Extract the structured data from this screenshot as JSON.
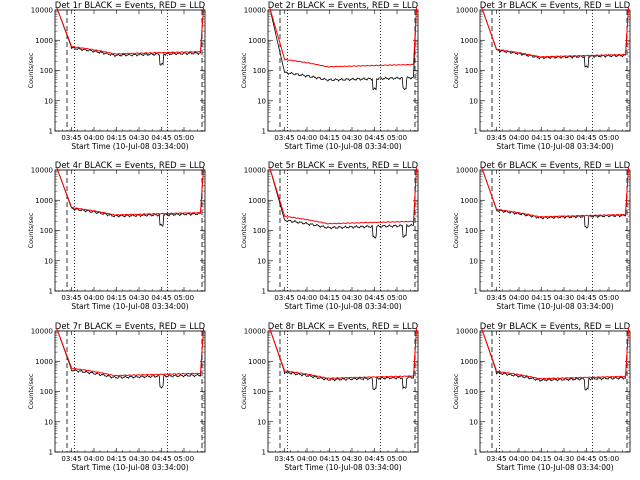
{
  "colors": {
    "events": "#000000",
    "lld": "#ff0000",
    "background": "#ffffff"
  },
  "shared": {
    "xlabel": "Start Time (10-Jul-08 03:34:00)",
    "ylabel": "Counts/sec",
    "xticks": [
      "03:45",
      "04:00",
      "04:15",
      "04:30",
      "04:45",
      "05:00"
    ],
    "yticks": [
      "1",
      "10",
      "100",
      "1000",
      "10000"
    ]
  },
  "chart_data": [
    {
      "type": "line",
      "title": "Det 1r BLACK = Events, RED = LLD",
      "yscale": "log",
      "ylim": [
        1,
        10000
      ],
      "xlim": [
        "03:34",
        "05:14"
      ],
      "markers": [
        "03:42",
        "03:47",
        "04:49",
        "05:12"
      ],
      "series": [
        {
          "name": "Events",
          "color": "#000000",
          "level": 360,
          "dips": [
            "04:45"
          ]
        },
        {
          "name": "LLD",
          "color": "#ff0000",
          "level": 400
        }
      ]
    },
    {
      "type": "line",
      "title": "Det 2r BLACK = Events, RED = LLD",
      "yscale": "log",
      "ylim": [
        1,
        10000
      ],
      "xlim": [
        "03:34",
        "05:14"
      ],
      "markers": [
        "03:42",
        "03:47",
        "04:49",
        "05:12"
      ],
      "series": [
        {
          "name": "Events",
          "color": "#000000",
          "level": 55,
          "dips": [
            "04:45",
            "05:05"
          ]
        },
        {
          "name": "LLD",
          "color": "#ff0000",
          "level": 150
        }
      ]
    },
    {
      "type": "line",
      "title": "Det 3r BLACK = Events, RED = LLD",
      "yscale": "log",
      "ylim": [
        1,
        10000
      ],
      "xlim": [
        "03:34",
        "05:14"
      ],
      "markers": [
        "03:42",
        "03:47",
        "04:49",
        "05:12"
      ],
      "series": [
        {
          "name": "Events",
          "color": "#000000",
          "level": 300,
          "dips": [
            "04:45"
          ]
        },
        {
          "name": "LLD",
          "color": "#ff0000",
          "level": 320
        }
      ]
    },
    {
      "type": "line",
      "title": "Det 4r BLACK = Events, RED = LLD",
      "yscale": "log",
      "ylim": [
        1,
        10000
      ],
      "xlim": [
        "03:34",
        "05:14"
      ],
      "markers": [
        "03:42",
        "03:47",
        "04:49",
        "05:12"
      ],
      "series": [
        {
          "name": "Events",
          "color": "#000000",
          "level": 340,
          "dips": [
            "04:45"
          ]
        },
        {
          "name": "LLD",
          "color": "#ff0000",
          "level": 370
        }
      ]
    },
    {
      "type": "line",
      "title": "Det 5r BLACK = Events, RED = LLD",
      "yscale": "log",
      "ylim": [
        1,
        10000
      ],
      "xlim": [
        "03:34",
        "05:14"
      ],
      "markers": [
        "03:42",
        "03:47",
        "04:49",
        "05:12"
      ],
      "series": [
        {
          "name": "Events",
          "color": "#000000",
          "level": 140,
          "dips": [
            "04:45",
            "05:05"
          ]
        },
        {
          "name": "LLD",
          "color": "#ff0000",
          "level": 190
        }
      ]
    },
    {
      "type": "line",
      "title": "Det 6r BLACK = Events, RED = LLD",
      "yscale": "log",
      "ylim": [
        1,
        10000
      ],
      "xlim": [
        "03:34",
        "05:14"
      ],
      "markers": [
        "03:42",
        "03:47",
        "04:49",
        "05:12"
      ],
      "series": [
        {
          "name": "Events",
          "color": "#000000",
          "level": 300,
          "dips": [
            "04:45"
          ]
        },
        {
          "name": "LLD",
          "color": "#ff0000",
          "level": 320
        }
      ]
    },
    {
      "type": "line",
      "title": "Det 7r BLACK = Events, RED = LLD",
      "yscale": "log",
      "ylim": [
        1,
        10000
      ],
      "xlim": [
        "03:34",
        "05:14"
      ],
      "markers": [
        "03:42",
        "03:47",
        "04:49",
        "05:12"
      ],
      "series": [
        {
          "name": "Events",
          "color": "#000000",
          "level": 330,
          "dips": [
            "04:45"
          ]
        },
        {
          "name": "LLD",
          "color": "#ff0000",
          "level": 380
        }
      ]
    },
    {
      "type": "line",
      "title": "Det 8r BLACK = Events, RED = LLD",
      "yscale": "log",
      "ylim": [
        1,
        10000
      ],
      "xlim": [
        "03:34",
        "05:14"
      ],
      "markers": [
        "03:42",
        "03:47",
        "04:49",
        "05:12"
      ],
      "series": [
        {
          "name": "Events",
          "color": "#000000",
          "level": 280,
          "dips": [
            "04:45",
            "05:05"
          ]
        },
        {
          "name": "LLD",
          "color": "#ff0000",
          "level": 310
        }
      ]
    },
    {
      "type": "line",
      "title": "Det 9r BLACK = Events, RED = LLD",
      "yscale": "log",
      "ylim": [
        1,
        10000
      ],
      "xlim": [
        "03:34",
        "05:14"
      ],
      "markers": [
        "03:42",
        "03:47",
        "04:49",
        "05:12"
      ],
      "series": [
        {
          "name": "Events",
          "color": "#000000",
          "level": 270,
          "dips": [
            "04:45"
          ]
        },
        {
          "name": "LLD",
          "color": "#ff0000",
          "level": 300
        }
      ]
    }
  ]
}
